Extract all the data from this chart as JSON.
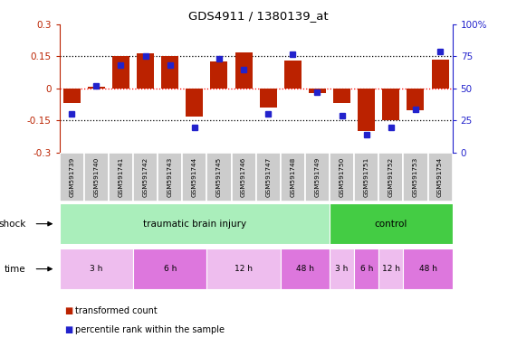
{
  "title": "GDS4911 / 1380139_at",
  "samples": [
    "GSM591739",
    "GSM591740",
    "GSM591741",
    "GSM591742",
    "GSM591743",
    "GSM591744",
    "GSM591745",
    "GSM591746",
    "GSM591747",
    "GSM591748",
    "GSM591749",
    "GSM591750",
    "GSM591751",
    "GSM591752",
    "GSM591753",
    "GSM591754"
  ],
  "bar_values": [
    -0.07,
    0.01,
    0.15,
    0.165,
    0.153,
    -0.13,
    0.125,
    0.168,
    -0.09,
    0.13,
    -0.02,
    -0.07,
    -0.2,
    -0.15,
    -0.1,
    0.135
  ],
  "dot_values": [
    30,
    52,
    68,
    75,
    68,
    20,
    73,
    65,
    30,
    77,
    47,
    29,
    14,
    20,
    34,
    79
  ],
  "ylim": [
    -0.3,
    0.3
  ],
  "y2lim": [
    0,
    100
  ],
  "yticks": [
    -0.3,
    -0.15,
    0.0,
    0.15,
    0.3
  ],
  "y2ticks": [
    0,
    25,
    50,
    75,
    100
  ],
  "hlines": [
    0.15,
    0.0,
    -0.15
  ],
  "bar_color": "#BB2200",
  "dot_color": "#2222CC",
  "bg_color": "#FFFFFF",
  "shock_label": "shock",
  "time_label": "time",
  "shock_groups": [
    {
      "label": "traumatic brain injury",
      "start": 0,
      "end": 11,
      "color": "#AAEEBB"
    },
    {
      "label": "control",
      "start": 11,
      "end": 16,
      "color": "#44CC44"
    }
  ],
  "time_groups": [
    {
      "label": "3 h",
      "start": 0,
      "end": 3,
      "color": "#EEBDEE"
    },
    {
      "label": "6 h",
      "start": 3,
      "end": 6,
      "color": "#DD77DD"
    },
    {
      "label": "12 h",
      "start": 6,
      "end": 9,
      "color": "#EEBDEE"
    },
    {
      "label": "48 h",
      "start": 9,
      "end": 11,
      "color": "#DD77DD"
    },
    {
      "label": "3 h",
      "start": 11,
      "end": 12,
      "color": "#EEBDEE"
    },
    {
      "label": "6 h",
      "start": 12,
      "end": 13,
      "color": "#DD77DD"
    },
    {
      "label": "12 h",
      "start": 13,
      "end": 14,
      "color": "#EEBDEE"
    },
    {
      "label": "48 h",
      "start": 14,
      "end": 16,
      "color": "#DD77DD"
    }
  ],
  "legend_items": [
    {
      "label": "transformed count",
      "color": "#BB2200"
    },
    {
      "label": "percentile rank within the sample",
      "color": "#2222CC"
    }
  ],
  "cell_color": "#CCCCCC",
  "cell_border": "#FFFFFF"
}
